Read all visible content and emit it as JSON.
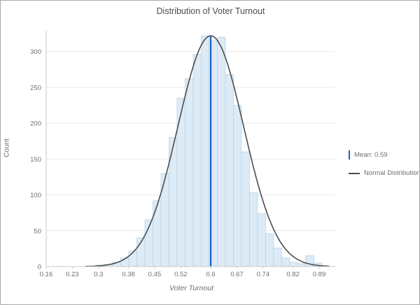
{
  "chart_data": {
    "type": "histogram",
    "title": "Distribution of Voter Turnout",
    "xlabel": "Voter Turnout",
    "ylabel": "Count",
    "x_ticks": [
      0.16,
      0.23,
      0.3,
      0.38,
      0.45,
      0.52,
      0.6,
      0.67,
      0.74,
      0.82,
      0.89
    ],
    "y_ticks": [
      0,
      50,
      100,
      150,
      200,
      250,
      300
    ],
    "xlim": [
      0.16,
      0.92
    ],
    "ylim": [
      0,
      330
    ],
    "bins_start": 0.295,
    "bin_width": 0.0215,
    "counts": [
      2,
      3,
      6,
      12,
      22,
      40,
      65,
      92,
      130,
      180,
      235,
      262,
      296,
      322,
      315,
      320,
      268,
      225,
      160,
      103,
      74,
      46,
      26,
      12,
      6,
      4,
      15,
      5
    ],
    "mean_line": {
      "value": 0.6,
      "label": "Mean: 0.59"
    },
    "normal_curve": {
      "label": "Normal Distribution",
      "mean": 0.6,
      "sd": 0.088,
      "peak": 322
    },
    "legend": [
      {
        "label": "Mean: 0.59",
        "color": "#1763c6",
        "swatch": "vline"
      },
      {
        "label": "Normal Distribution",
        "color": "#4d4d4d",
        "swatch": "hline"
      }
    ],
    "grid": true,
    "legend_position": "right",
    "colors": {
      "bar_fill": "#dcebf6",
      "bar_stroke": "#b9d3e6",
      "grid": "#e8e8e8",
      "axis": "#c9c9c9",
      "tick_text": "#6e6e6e",
      "mean": "#1763c6",
      "curve": "#4d4d4d",
      "title_text": "#4d4d4d"
    }
  }
}
